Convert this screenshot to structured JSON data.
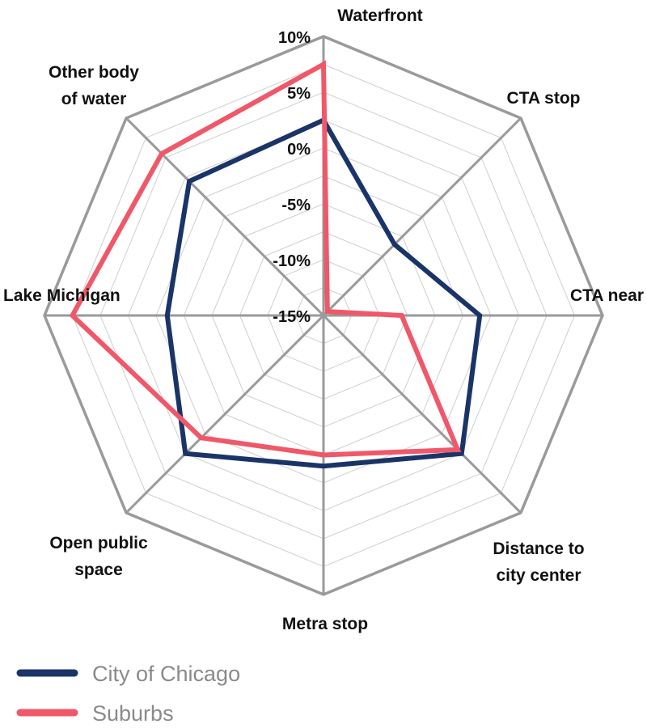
{
  "chart_data": {
    "type": "radar",
    "axes": [
      "Waterfront",
      "CTA stop",
      "CTA near",
      "Distance to city center",
      "Metra stop",
      "Open public space",
      "Lake Michigan",
      "Other body of water"
    ],
    "axis_label_lines": [
      [
        "Waterfront"
      ],
      [
        "CTA stop"
      ],
      [
        "CTA near"
      ],
      [
        "Distance to",
        "city center"
      ],
      [
        "Metra stop"
      ],
      [
        "Open public",
        "space"
      ],
      [
        "Lake Michigan"
      ],
      [
        "Other body",
        "of water"
      ]
    ],
    "r_range": [
      -15,
      10
    ],
    "r_ticks": [
      -15,
      -10,
      -5,
      0,
      5,
      10
    ],
    "tick_labels": [
      "-15%",
      "-10%",
      "-5%",
      "0%",
      "5%",
      "10%"
    ],
    "series": [
      {
        "name": "City of Chicago",
        "color": "#1b3468",
        "values": [
          2.5,
          -6,
          -1,
          2.5,
          -1.5,
          2.5,
          -1,
          2
        ]
      },
      {
        "name": "Suburbs",
        "color": "#f0586a",
        "values": [
          7.5,
          -14.5,
          -8,
          2,
          -2.5,
          0.5,
          7.5,
          5.5
        ]
      }
    ],
    "grid": true,
    "legend_position": "bottom-left"
  },
  "legend": {
    "items": [
      {
        "label": "City of Chicago",
        "color": "#1b3468"
      },
      {
        "label": "Suburbs",
        "color": "#f0586a"
      }
    ]
  }
}
